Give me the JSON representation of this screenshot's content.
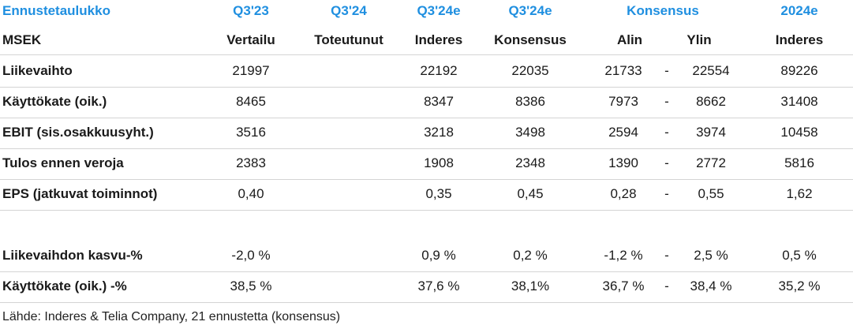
{
  "header": {
    "title": "Ennustetaulukko",
    "cols": [
      "Q3'23",
      "Q3'24",
      "Q3'24e",
      "Q3'24e",
      "Konsensus",
      "2024e"
    ]
  },
  "subheader": {
    "label": "MSEK",
    "cols": [
      "Vertailu",
      "Toteutunut",
      "Inderes",
      "Konsensus",
      "Alin",
      "Ylin",
      "Inderes"
    ]
  },
  "rows": [
    {
      "label": "Liikevaihto",
      "q323": "21997",
      "q324": "",
      "inderes": "22192",
      "konsensus": "22035",
      "alin": "21733",
      "dash": "-",
      "ylin": "22554",
      "y2024": "89226"
    },
    {
      "label": "Käyttökate (oik.)",
      "q323": "8465",
      "q324": "",
      "inderes": "8347",
      "konsensus": "8386",
      "alin": "7973",
      "dash": "-",
      "ylin": "8662",
      "y2024": "31408"
    },
    {
      "label": "EBIT (sis.osakkuusyht.)",
      "q323": "3516",
      "q324": "",
      "inderes": "3218",
      "konsensus": "3498",
      "alin": "2594",
      "dash": "-",
      "ylin": "3974",
      "y2024": "10458"
    },
    {
      "label": "Tulos ennen veroja",
      "q323": "2383",
      "q324": "",
      "inderes": "1908",
      "konsensus": "2348",
      "alin": "1390",
      "dash": "-",
      "ylin": "2772",
      "y2024": "5816"
    },
    {
      "label": "EPS (jatkuvat toiminnot)",
      "q323": "0,40",
      "q324": "",
      "inderes": "0,35",
      "konsensus": "0,45",
      "alin": "0,28",
      "dash": "-",
      "ylin": "0,55",
      "y2024": "1,62"
    }
  ],
  "rows2": [
    {
      "label": "Liikevaihdon kasvu-%",
      "q323": "-2,0 %",
      "q324": "",
      "inderes": "0,9 %",
      "konsensus": "0,2 %",
      "alin": "-1,2 %",
      "dash": "-",
      "ylin": "2,5 %",
      "y2024": "0,5 %"
    },
    {
      "label": "Käyttökate (oik.) -%",
      "q323": "38,5 %",
      "q324": "",
      "inderes": "37,6 %",
      "konsensus": "38,1%",
      "alin": "36,7 %",
      "dash": "-",
      "ylin": "38,4 %",
      "y2024": "35,2 %"
    }
  ],
  "source": "Lähde: Inderes & Telia Company, 21 ennustetta  (konsensus)"
}
